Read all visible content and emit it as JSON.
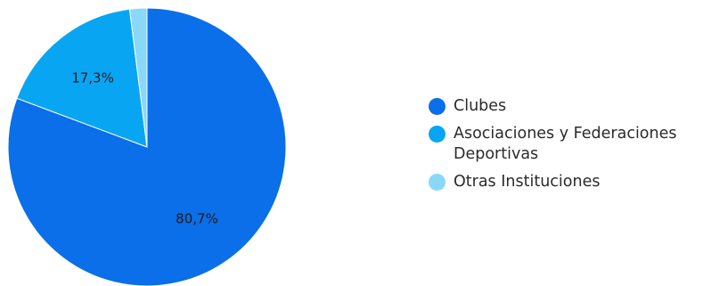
{
  "chart_data": {
    "type": "pie",
    "categories": [
      "Clubes",
      "Asociaciones y Federaciones Deportivas",
      "Otras Instituciones"
    ],
    "values": [
      80.7,
      17.3,
      2.0
    ],
    "data_labels": [
      "80,7%",
      "17,3%",
      ""
    ],
    "colors": [
      "#0a6fe8",
      "#08a6f2",
      "#8ad8f7"
    ],
    "start_angle_deg": 0,
    "direction": "clockwise",
    "legend_position": "right"
  }
}
